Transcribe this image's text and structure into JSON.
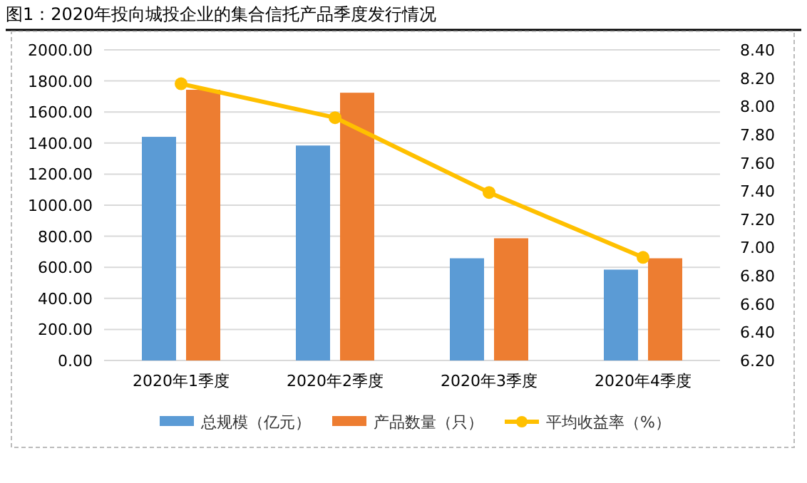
{
  "chart_data": {
    "type": "bar",
    "title": "图1：2020年投向城投企业的集合信托产品季度发行情况",
    "categories": [
      "2020年1季度",
      "2020年2季度",
      "2020年3季度",
      "2020年4季度"
    ],
    "series": [
      {
        "name": "总规模（亿元）",
        "color": "#5b9bd5",
        "values": [
          1440,
          1384,
          658,
          585
        ]
      },
      {
        "name": "产品数量（只）",
        "color": "#ed7d31",
        "values": [
          1743,
          1724,
          787,
          658
        ]
      },
      {
        "name": "平均收益率（%）",
        "color": "#ffc000",
        "type": "line",
        "axis": "y2",
        "marker": "circle",
        "values": [
          8.16,
          7.92,
          7.39,
          6.93
        ]
      }
    ],
    "ylim": [
      0,
      2000
    ],
    "yticks": [
      {
        "value": 0,
        "label": "0.00"
      },
      {
        "value": 200,
        "label": "200.00"
      },
      {
        "value": 400,
        "label": "400.00"
      },
      {
        "value": 600,
        "label": "600.00"
      },
      {
        "value": 800,
        "label": "800.00"
      },
      {
        "value": 1000,
        "label": "1000.00"
      },
      {
        "value": 1200,
        "label": "1200.00"
      },
      {
        "value": 1400,
        "label": "1400.00"
      },
      {
        "value": 1600,
        "label": "1600.00"
      },
      {
        "value": 1800,
        "label": "1800.00"
      },
      {
        "value": 2000,
        "label": "2000.00"
      }
    ],
    "y2lim": [
      6.2,
      8.4
    ],
    "y2ticks": [
      {
        "value": 6.2,
        "label": "6.20"
      },
      {
        "value": 6.4,
        "label": "6.40"
      },
      {
        "value": 6.6,
        "label": "6.60"
      },
      {
        "value": 6.8,
        "label": "6.80"
      },
      {
        "value": 7.0,
        "label": "7.00"
      },
      {
        "value": 7.2,
        "label": "7.20"
      },
      {
        "value": 7.4,
        "label": "7.40"
      },
      {
        "value": 7.6,
        "label": "7.60"
      },
      {
        "value": 7.8,
        "label": "7.80"
      },
      {
        "value": 8.0,
        "label": "8.00"
      },
      {
        "value": 8.2,
        "label": "8.20"
      },
      {
        "value": 8.4,
        "label": "8.40"
      }
    ],
    "grid": "y",
    "legend": "bottom"
  }
}
